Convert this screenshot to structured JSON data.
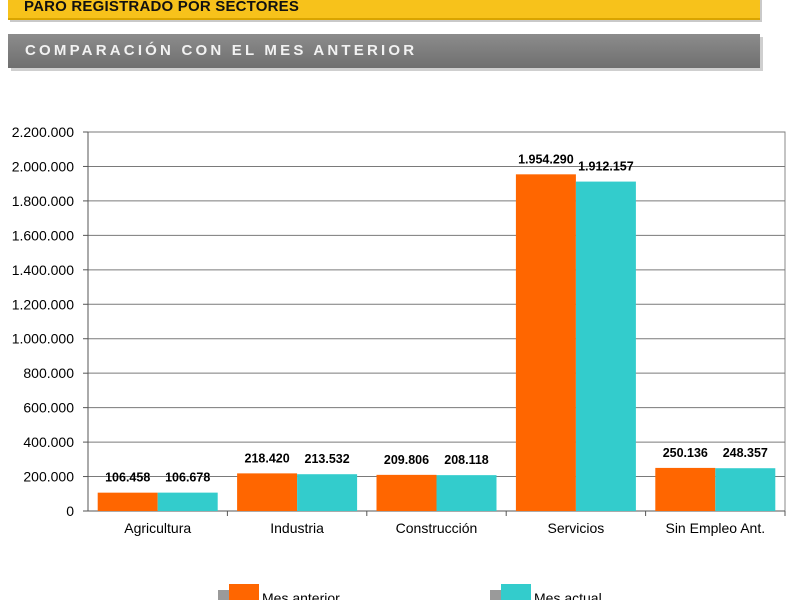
{
  "header": {
    "title": "PARO REGISTRADO POR SECTORES",
    "subtitle": "COMPARACIÓN CON EL MES ANTERIOR"
  },
  "chart_data": {
    "type": "bar",
    "categories": [
      "Agricultura",
      "Industria",
      "Construcción",
      "Servicios",
      "Sin Empleo Ant."
    ],
    "series": [
      {
        "name": "Mes anterior",
        "values": [
          106458,
          218420,
          209806,
          1954290,
          250136
        ],
        "labels": [
          "106.458",
          "218.420",
          "209.806",
          "1.954.290",
          "250.136"
        ],
        "color": "#ff6600"
      },
      {
        "name": "Mes actual",
        "values": [
          106678,
          213532,
          208118,
          1912157,
          248357
        ],
        "labels": [
          "106.678",
          "213.532",
          "208.118",
          "1.912.157",
          "248.357"
        ],
        "color": "#33cccc"
      }
    ],
    "ylim": [
      0,
      2200000
    ],
    "yticks": [
      0,
      200000,
      400000,
      600000,
      800000,
      1000000,
      1200000,
      1400000,
      1600000,
      1800000,
      2000000,
      2200000
    ],
    "ytick_labels": [
      "0",
      "200.000",
      "400.000",
      "600.000",
      "800.000",
      "1.000.000",
      "1.200.000",
      "1.400.000",
      "1.600.000",
      "1.800.000",
      "2.000.000",
      "2.200.000"
    ],
    "grid": true,
    "legend": "bottom"
  }
}
